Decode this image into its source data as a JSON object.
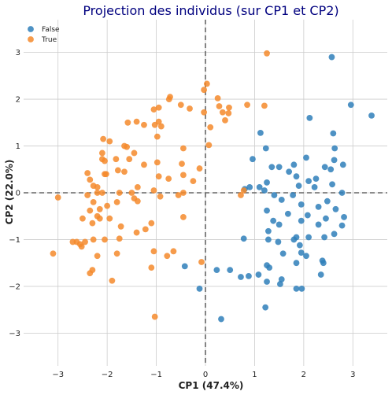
{
  "chart_data": {
    "type": "scatter",
    "title": "Projection des individus (sur CP1 et CP2)",
    "xlabel": "CP1 (47.4%)",
    "ylabel": "CP2 (22.0%)",
    "xlim": [
      -3.7,
      3.7
    ],
    "ylim": [
      -3.7,
      3.7
    ],
    "xticks": [
      -3,
      -2,
      -1,
      0,
      1,
      2,
      3
    ],
    "yticks": [
      -3,
      -2,
      -1,
      0,
      1,
      2,
      3
    ],
    "xtick_labels": [
      "−3",
      "−2",
      "−1",
      "0",
      "1",
      "2",
      "3"
    ],
    "ytick_labels": [
      "−3",
      "−2",
      "−1",
      "0",
      "1",
      "2",
      "3"
    ],
    "grid": true,
    "reference_lines": {
      "x": 0,
      "y": 0,
      "style": "dashed"
    },
    "legend_position": "top-left",
    "series": [
      {
        "name": "False",
        "color": "#2f7fba",
        "points": [
          [
            2.57,
            2.9
          ],
          [
            3.38,
            1.65
          ],
          [
            2.96,
            1.88
          ],
          [
            2.12,
            1.6
          ],
          [
            1.12,
            1.28
          ],
          [
            2.6,
            1.27
          ],
          [
            2.63,
            0.95
          ],
          [
            1.23,
            0.95
          ],
          [
            2.62,
            0.7
          ],
          [
            2.55,
            0.5
          ],
          [
            2.05,
            0.75
          ],
          [
            2.43,
            0.55
          ],
          [
            2.8,
            0.6
          ],
          [
            0.96,
            0.72
          ],
          [
            1.35,
            0.55
          ],
          [
            1.5,
            0.55
          ],
          [
            1.8,
            0.6
          ],
          [
            1.7,
            0.45
          ],
          [
            1.85,
            0.35
          ],
          [
            2.25,
            0.3
          ],
          [
            2.58,
            0.18
          ],
          [
            2.1,
            0.25
          ],
          [
            2.78,
            0.0
          ],
          [
            0.9,
            0.12
          ],
          [
            1.1,
            0.12
          ],
          [
            1.25,
            0.22
          ],
          [
            1.9,
            0.15
          ],
          [
            2.22,
            0.12
          ],
          [
            1.2,
            0.05
          ],
          [
            0.8,
            0.08
          ],
          [
            1.4,
            -0.05
          ],
          [
            1.55,
            -0.15
          ],
          [
            1.78,
            -0.05
          ],
          [
            2.48,
            -0.18
          ],
          [
            1.95,
            -0.25
          ],
          [
            2.3,
            -0.3
          ],
          [
            2.65,
            -0.35
          ],
          [
            1.25,
            -0.38
          ],
          [
            1.68,
            -0.45
          ],
          [
            2.82,
            -0.52
          ],
          [
            2.08,
            -0.48
          ],
          [
            2.45,
            -0.55
          ],
          [
            1.38,
            -0.6
          ],
          [
            1.5,
            -0.68
          ],
          [
            2.3,
            -0.68
          ],
          [
            1.95,
            -0.6
          ],
          [
            2.78,
            -0.7
          ],
          [
            2.62,
            -0.88
          ],
          [
            1.28,
            -0.82
          ],
          [
            1.85,
            -0.95
          ],
          [
            2.1,
            -0.95
          ],
          [
            0.78,
            -0.98
          ],
          [
            1.8,
            -1.0
          ],
          [
            2.42,
            -0.95
          ],
          [
            1.92,
            -1.12
          ],
          [
            1.28,
            -1.0
          ],
          [
            1.48,
            -1.05
          ],
          [
            2.05,
            -1.35
          ],
          [
            1.95,
            -1.28
          ],
          [
            1.58,
            -1.3
          ],
          [
            1.85,
            -1.5
          ],
          [
            2.38,
            -1.45
          ],
          [
            1.3,
            -1.6
          ],
          [
            1.25,
            -1.55
          ],
          [
            1.08,
            -1.75
          ],
          [
            0.88,
            -1.78
          ],
          [
            0.72,
            -1.8
          ],
          [
            1.52,
            -1.95
          ],
          [
            1.25,
            -1.9
          ],
          [
            1.85,
            -2.05
          ],
          [
            1.96,
            -2.05
          ],
          [
            2.35,
            -1.75
          ],
          [
            -0.42,
            -1.57
          ],
          [
            -0.12,
            -2.05
          ],
          [
            1.22,
            -2.45
          ],
          [
            0.32,
            -2.7
          ],
          [
            0.5,
            -1.65
          ],
          [
            0.23,
            -1.65
          ],
          [
            2.4,
            -1.5
          ],
          [
            1.55,
            -1.85
          ]
        ]
      },
      {
        "name": "True",
        "color": "#f58a2c",
        "points": [
          [
            1.25,
            2.98
          ],
          [
            0.03,
            2.33
          ],
          [
            -0.03,
            2.2
          ],
          [
            -0.72,
            2.05
          ],
          [
            -0.74,
            2.0
          ],
          [
            0.25,
            2.02
          ],
          [
            0.28,
            1.85
          ],
          [
            0.48,
            1.82
          ],
          [
            0.35,
            1.72
          ],
          [
            0.4,
            1.55
          ],
          [
            0.47,
            1.7
          ],
          [
            0.85,
            1.88
          ],
          [
            1.2,
            1.86
          ],
          [
            -0.95,
            1.82
          ],
          [
            -1.05,
            1.78
          ],
          [
            -1.03,
            1.45
          ],
          [
            -0.9,
            1.42
          ],
          [
            -0.5,
            1.88
          ],
          [
            -0.32,
            1.8
          ],
          [
            -0.03,
            1.72
          ],
          [
            0.1,
            1.4
          ],
          [
            -0.95,
            1.52
          ],
          [
            -1.4,
            1.52
          ],
          [
            -1.25,
            1.45
          ],
          [
            -1.58,
            1.5
          ],
          [
            -1.95,
            1.1
          ],
          [
            -2.08,
            1.15
          ],
          [
            -1.65,
            1.0
          ],
          [
            -1.6,
            0.98
          ],
          [
            -0.98,
            1.2
          ],
          [
            -0.45,
            0.95
          ],
          [
            0.07,
            1.02
          ],
          [
            -0.12,
            0.52
          ],
          [
            -0.48,
            0.62
          ],
          [
            -0.98,
            0.65
          ],
          [
            -1.25,
            0.6
          ],
          [
            -1.45,
            0.85
          ],
          [
            -1.55,
            0.72
          ],
          [
            -1.82,
            0.72
          ],
          [
            -2.1,
            0.85
          ],
          [
            -2.1,
            0.72
          ],
          [
            -2.05,
            0.68
          ],
          [
            -1.78,
            0.48
          ],
          [
            -1.65,
            0.45
          ],
          [
            -2.05,
            0.4
          ],
          [
            -2.02,
            0.4
          ],
          [
            -2.35,
            0.28
          ],
          [
            -2.4,
            0.42
          ],
          [
            -2.28,
            0.15
          ],
          [
            -2.2,
            0.12
          ],
          [
            -1.38,
            0.12
          ],
          [
            -0.95,
            0.35
          ],
          [
            -0.75,
            0.3
          ],
          [
            -0.45,
            0.38
          ],
          [
            -0.25,
            0.25
          ],
          [
            -0.45,
            0.0
          ],
          [
            -1.05,
            0.05
          ],
          [
            -1.5,
            0.0
          ],
          [
            -1.75,
            0.0
          ],
          [
            -2.1,
            0.0
          ],
          [
            -2.2,
            0.0
          ],
          [
            -2.4,
            -0.05
          ],
          [
            -3.0,
            -0.1
          ],
          [
            -2.28,
            -0.2
          ],
          [
            -1.8,
            -0.2
          ],
          [
            -1.45,
            -0.12
          ],
          [
            -1.38,
            -0.18
          ],
          [
            -0.92,
            -0.08
          ],
          [
            -0.55,
            -0.05
          ],
          [
            -2.0,
            -0.28
          ],
          [
            -2.15,
            -0.35
          ],
          [
            -2.35,
            -0.38
          ],
          [
            -2.5,
            -0.55
          ],
          [
            -2.2,
            -0.5
          ],
          [
            -2.3,
            -0.65
          ],
          [
            -2.15,
            -0.55
          ],
          [
            -1.95,
            -0.55
          ],
          [
            -1.72,
            -0.72
          ],
          [
            -1.1,
            -0.65
          ],
          [
            -1.75,
            -0.98
          ],
          [
            -1.4,
            -0.85
          ],
          [
            -0.45,
            -0.52
          ],
          [
            -1.22,
            -0.78
          ],
          [
            -2.05,
            -1.0
          ],
          [
            -2.28,
            -1.0
          ],
          [
            -2.62,
            -1.05
          ],
          [
            -2.7,
            -1.05
          ],
          [
            -2.45,
            -1.05
          ],
          [
            -2.52,
            -1.15
          ],
          [
            -2.55,
            -1.1
          ],
          [
            -1.8,
            -1.3
          ],
          [
            -2.2,
            -1.35
          ],
          [
            -3.1,
            -1.3
          ],
          [
            -2.35,
            -1.72
          ],
          [
            -2.3,
            -1.65
          ],
          [
            -1.9,
            -1.88
          ],
          [
            -1.05,
            -1.25
          ],
          [
            -1.1,
            -1.6
          ],
          [
            -0.78,
            -1.35
          ],
          [
            -1.03,
            -2.65
          ],
          [
            -0.65,
            -1.25
          ],
          [
            -0.08,
            -1.48
          ],
          [
            0.78,
            0.05
          ],
          [
            0.72,
            -0.05
          ]
        ]
      }
    ]
  }
}
